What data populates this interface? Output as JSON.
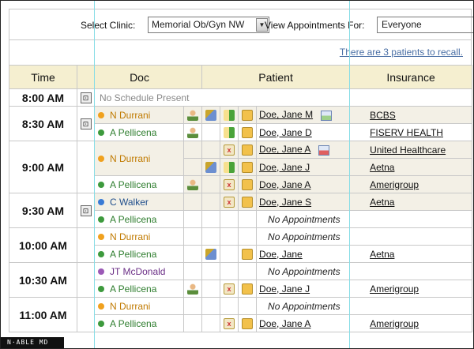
{
  "toolbar": {
    "select_clinic_label": "Select Clinic:",
    "clinic_value": "Memorial Ob/Gyn NW",
    "view_label": "View Appointments For:",
    "for_value": "Everyone"
  },
  "recall_link": "There are 3 patients to recall.",
  "headers": {
    "time": "Time",
    "doc": "Doc",
    "patient": "Patient",
    "insurance": "Insurance"
  },
  "colors": {
    "orange": "#f0a11e",
    "green": "#3d9a3d",
    "blue": "#3a7bd5",
    "purple": "#9b59b6"
  },
  "rows": [
    {
      "time": "8:00 AM",
      "doc": "",
      "patient": "",
      "insurance": "",
      "no_schedule": "No Schedule Present"
    },
    {
      "time": "8:30 AM",
      "doc": "N Durrani",
      "doc_color": "orange",
      "patient": "Doe, Jane M",
      "insurance": "BCBS"
    },
    {
      "time": "",
      "doc": "A Pellicena",
      "doc_color": "green",
      "patient": "Doe, Jane D",
      "insurance": "FISERV HEALTH"
    },
    {
      "time": "9:00 AM",
      "doc": "N Durrani",
      "doc_color": "orange",
      "patient": "Doe, Jane A",
      "insurance": "United Healthcare"
    },
    {
      "time": "",
      "doc": "",
      "patient": "Doe, Jane J",
      "insurance": "Aetna"
    },
    {
      "time": "",
      "doc": "A Pellicena",
      "doc_color": "green",
      "patient": "Doe, Jane A",
      "insurance": "Amerigroup"
    },
    {
      "time": "9:30 AM",
      "doc": "C Walker",
      "doc_color": "blue",
      "patient": "Doe, Jane S",
      "insurance": "Aetna"
    },
    {
      "time": "",
      "doc": "A Pellicena",
      "doc_color": "green",
      "patient": "No Appointments",
      "insurance": ""
    },
    {
      "time": "10:00 AM",
      "doc": "N Durrani",
      "doc_color": "orange",
      "patient": "No Appointments",
      "insurance": ""
    },
    {
      "time": "",
      "doc": "A Pellicena",
      "doc_color": "green",
      "patient": "Doe, Jane",
      "insurance": "Aetna"
    },
    {
      "time": "10:30 AM",
      "doc": "JT McDonald",
      "doc_color": "purple",
      "patient": "No Appointments",
      "insurance": ""
    },
    {
      "time": "",
      "doc": "A Pellicena",
      "doc_color": "green",
      "patient": "Doe, Jane J",
      "insurance": "Amerigroup"
    },
    {
      "time": "11:00 AM",
      "doc": "N Durrani",
      "doc_color": "orange",
      "patient": "No Appointments",
      "insurance": ""
    },
    {
      "time": "",
      "doc": "A Pellicena",
      "doc_color": "green",
      "patient": "Doe, Jane A",
      "insurance": "Amerigroup"
    }
  ],
  "footer": "N·ABLE MD"
}
